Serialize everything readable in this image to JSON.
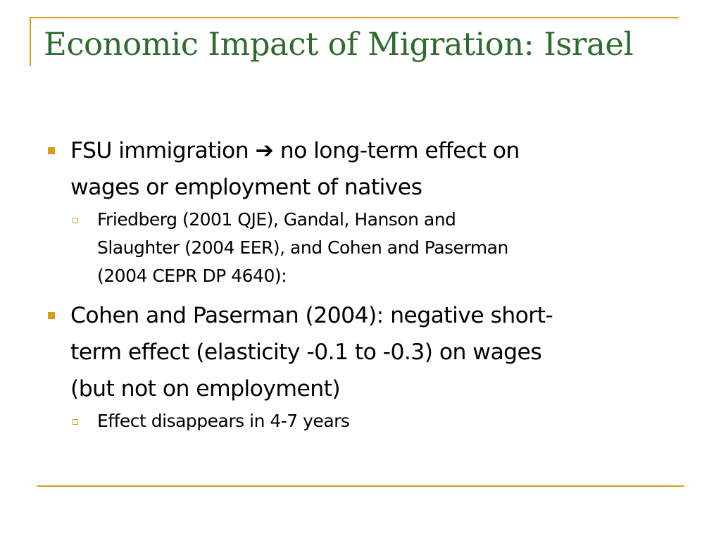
{
  "colors": {
    "accent": "#D4A017",
    "title": "#2E6B2E",
    "text": "#000000"
  },
  "slide": {
    "title": "Economic Impact of Migration: Israel",
    "bullets": [
      {
        "marker_icon": "filled-square-icon",
        "lines": [
          "FSU immigration ➔ no long-term effect on",
          "wages or employment of natives"
        ],
        "sub": [
          {
            "marker_icon": "hollow-square-icon",
            "lines": [
              "Friedberg (2001 QJE), Gandal, Hanson and",
              "Slaughter (2004 EER), and Cohen and Paserman",
              "(2004 CEPR DP 4640):"
            ]
          }
        ]
      },
      {
        "marker_icon": "filled-square-icon",
        "lines": [
          "Cohen and Paserman (2004): negative short-",
          "term effect (elasticity -0.1 to -0.3) on wages",
          "(but not on employment)"
        ],
        "sub": [
          {
            "marker_icon": "hollow-square-icon",
            "lines": [
              "Effect disappears in 4-7 years"
            ]
          }
        ]
      }
    ]
  }
}
